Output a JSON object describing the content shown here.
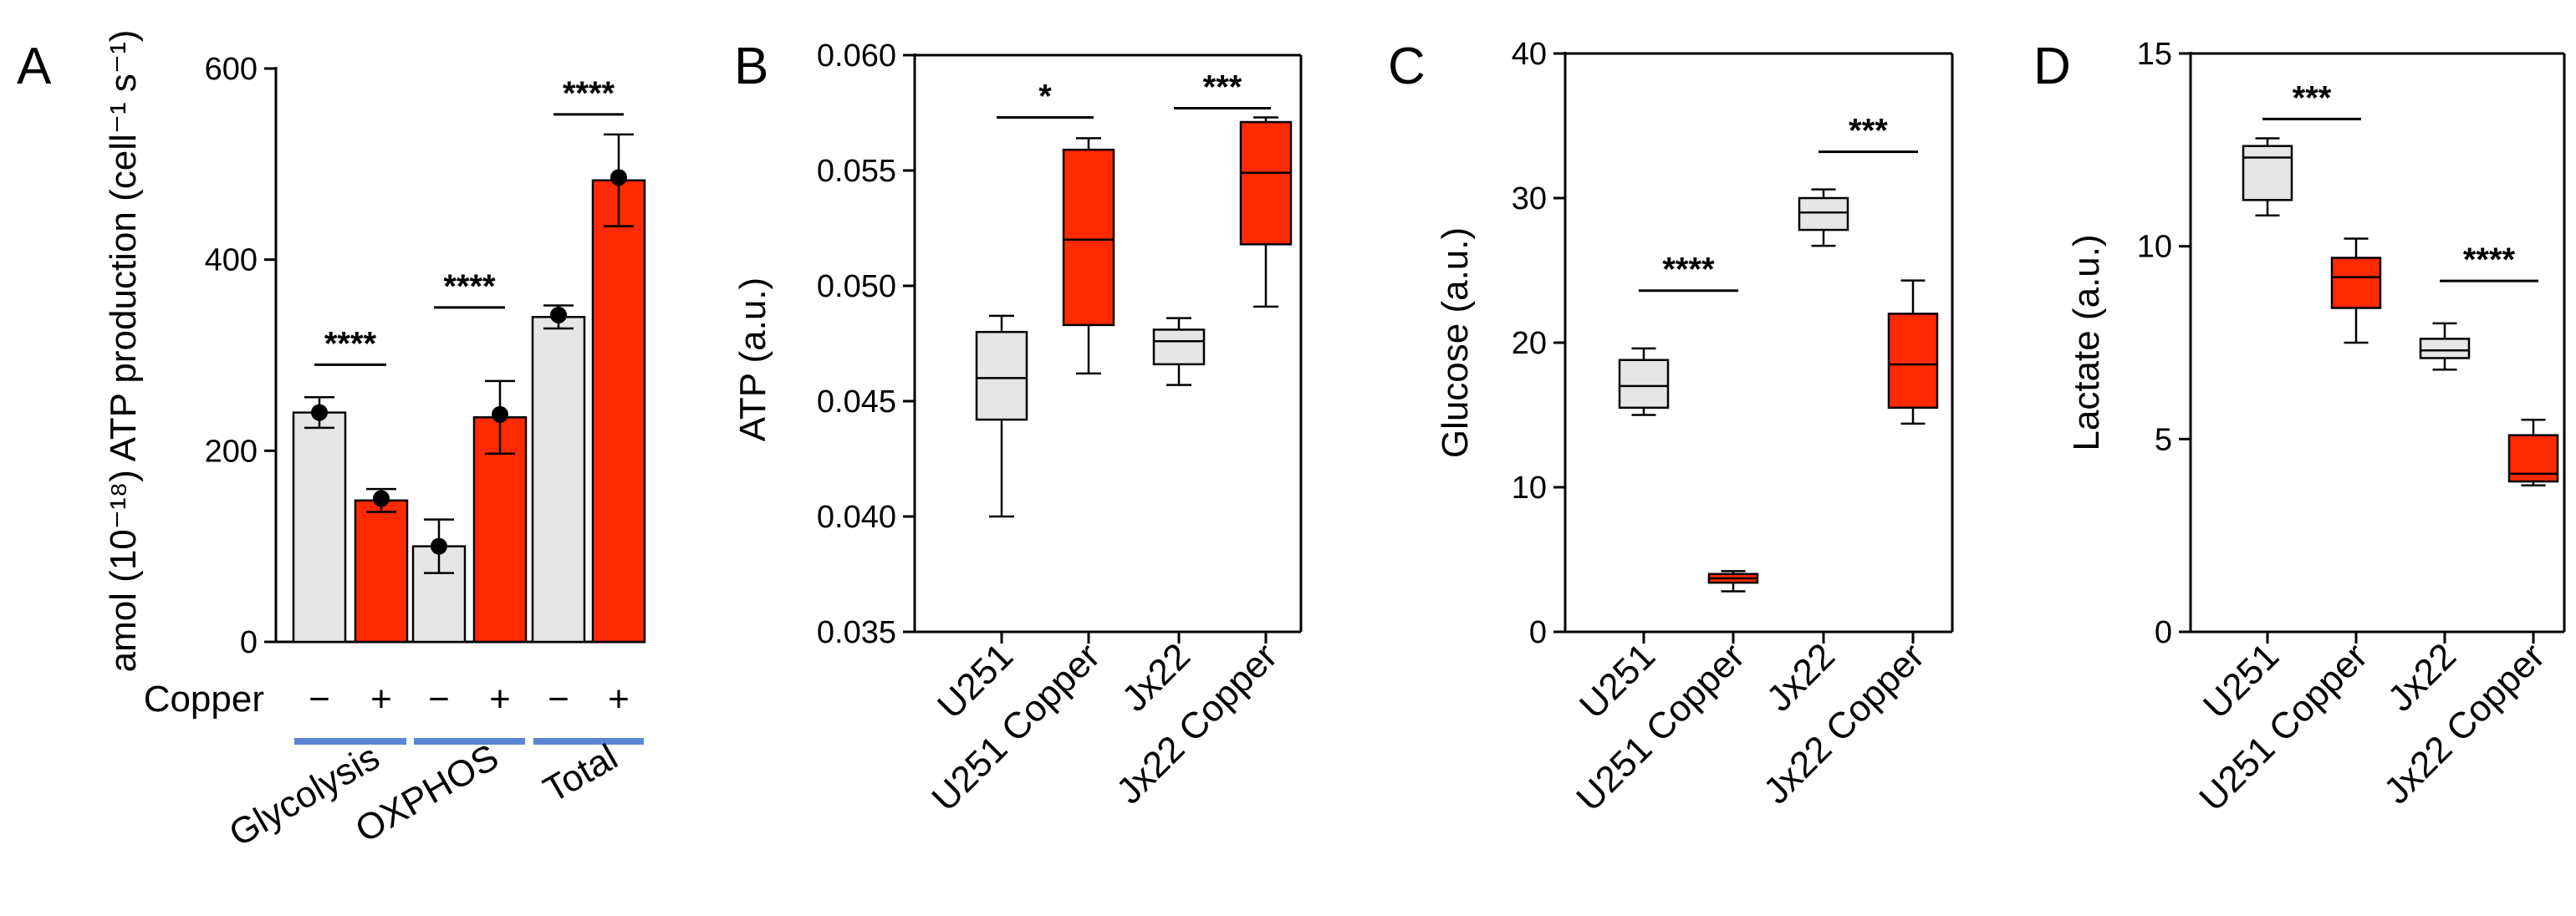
{
  "figure": {
    "colors": {
      "control": "#e6e6e6",
      "copper": "#ff2a00",
      "group_line": "#5b86d6",
      "outline": "#000000"
    }
  },
  "chart_data": [
    {
      "panel": "A",
      "type": "bar",
      "ylabel": "amol (10⁻¹⁸) ATP production (cell⁻¹ s⁻¹)",
      "ylim": [
        0,
        600
      ],
      "yticks": [
        "0",
        "200",
        "400",
        "600"
      ],
      "copper_label": "Copper",
      "groups": [
        "Glycolysis",
        "OXPHOS",
        "Total"
      ],
      "signs": [
        "−",
        "+",
        "−",
        "+",
        "−",
        "+"
      ],
      "bars": [
        {
          "group": "Glycolysis",
          "copper": false,
          "mean": 240,
          "sd": 16,
          "point": 240
        },
        {
          "group": "Glycolysis",
          "copper": true,
          "mean": 148,
          "sd": 12,
          "point": 150
        },
        {
          "group": "OXPHOS",
          "copper": false,
          "mean": 100,
          "sd": 28,
          "point": 100
        },
        {
          "group": "OXPHOS",
          "copper": true,
          "mean": 235,
          "sd": 38,
          "point": 238
        },
        {
          "group": "Total",
          "copper": false,
          "mean": 340,
          "sd": 12,
          "point": 342
        },
        {
          "group": "Total",
          "copper": true,
          "mean": 483,
          "sd": 48,
          "point": 486
        }
      ],
      "significance": [
        {
          "between": [
            0,
            1
          ],
          "label": "****",
          "y": 290
        },
        {
          "between": [
            2,
            3
          ],
          "label": "****",
          "y": 350
        },
        {
          "between": [
            4,
            5
          ],
          "label": "****",
          "y": 552
        }
      ]
    },
    {
      "panel": "B",
      "type": "box",
      "ylabel": "ATP (a.u.)",
      "ylim": [
        0.035,
        0.06
      ],
      "yticks": [
        "0.035",
        "0.040",
        "0.045",
        "0.050",
        "0.055",
        "0.060"
      ],
      "categories": [
        "U251",
        "U251 Copper",
        "Jx22",
        "Jx22 Copper"
      ],
      "boxes": [
        {
          "min": 0.04,
          "q1": 0.0442,
          "median": 0.046,
          "q3": 0.048,
          "max": 0.0487,
          "copper": false
        },
        {
          "min": 0.0462,
          "q1": 0.0483,
          "median": 0.052,
          "q3": 0.0559,
          "max": 0.0564,
          "copper": true
        },
        {
          "min": 0.0457,
          "q1": 0.0466,
          "median": 0.0476,
          "q3": 0.0481,
          "max": 0.0486,
          "copper": false
        },
        {
          "min": 0.0491,
          "q1": 0.0518,
          "median": 0.0549,
          "q3": 0.0571,
          "max": 0.0573,
          "copper": true
        }
      ],
      "significance": [
        {
          "between": [
            0,
            1
          ],
          "label": "*",
          "y": 0.0573
        },
        {
          "between": [
            2,
            3
          ],
          "label": "***",
          "y": 0.0577
        }
      ]
    },
    {
      "panel": "C",
      "type": "box",
      "ylabel": "Glucose (a.u.)",
      "ylim": [
        0,
        40
      ],
      "yticks": [
        "0",
        "10",
        "20",
        "30",
        "40"
      ],
      "categories": [
        "U251",
        "U251 Copper",
        "Jx22",
        "Jx22 Copper"
      ],
      "boxes": [
        {
          "min": 15.0,
          "q1": 15.5,
          "median": 17.0,
          "q3": 18.8,
          "max": 19.6,
          "copper": false
        },
        {
          "min": 2.8,
          "q1": 3.4,
          "median": 3.7,
          "q3": 4.0,
          "max": 4.2,
          "copper": true
        },
        {
          "min": 26.7,
          "q1": 27.8,
          "median": 29.0,
          "q3": 30.0,
          "max": 30.6,
          "copper": false
        },
        {
          "min": 14.4,
          "q1": 15.5,
          "median": 18.5,
          "q3": 22.0,
          "max": 24.3,
          "copper": true
        }
      ],
      "significance": [
        {
          "between": [
            0,
            1
          ],
          "label": "****",
          "y": 23.6
        },
        {
          "between": [
            2,
            3
          ],
          "label": "***",
          "y": 33.2
        }
      ]
    },
    {
      "panel": "D",
      "type": "box",
      "ylabel": "Lactate (a.u.)",
      "ylim": [
        0,
        15
      ],
      "yticks": [
        "0",
        "5",
        "10",
        "15"
      ],
      "categories": [
        "U251",
        "U251 Copper",
        "Jx22",
        "Jx22 Copper"
      ],
      "boxes": [
        {
          "min": 10.8,
          "q1": 11.2,
          "median": 12.3,
          "q3": 12.6,
          "max": 12.8,
          "copper": false
        },
        {
          "min": 7.5,
          "q1": 8.4,
          "median": 9.2,
          "q3": 9.7,
          "max": 10.2,
          "copper": true
        },
        {
          "min": 6.8,
          "q1": 7.1,
          "median": 7.3,
          "q3": 7.6,
          "max": 8.0,
          "copper": false
        },
        {
          "min": 3.8,
          "q1": 3.9,
          "median": 4.1,
          "q3": 5.1,
          "max": 5.5,
          "copper": true
        }
      ],
      "significance": [
        {
          "between": [
            0,
            1
          ],
          "label": "***",
          "y": 13.3
        },
        {
          "between": [
            2,
            3
          ],
          "label": "****",
          "y": 9.1
        }
      ]
    }
  ]
}
